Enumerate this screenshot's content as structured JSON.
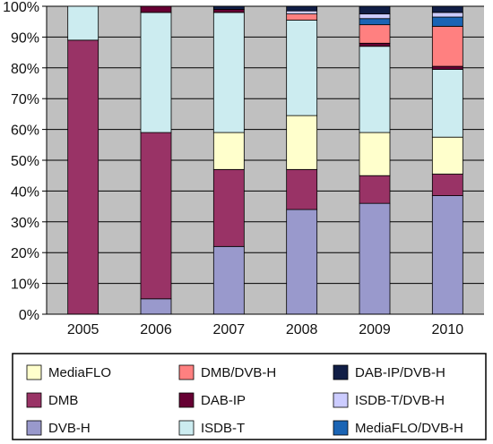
{
  "chart_data": {
    "type": "bar",
    "stacked": true,
    "categories": [
      "2005",
      "2006",
      "2007",
      "2008",
      "2009",
      "2010"
    ],
    "ylim": [
      0,
      100
    ],
    "yticks": [
      "0%",
      "10%",
      "20%",
      "30%",
      "40%",
      "50%",
      "60%",
      "70%",
      "80%",
      "90%",
      "100%"
    ],
    "grid": true,
    "legend_position": "bottom",
    "series": [
      {
        "name": "DVB-H",
        "color": "#9999cc",
        "values": [
          0,
          5,
          22,
          34,
          36,
          38.5
        ]
      },
      {
        "name": "DMB",
        "color": "#993366",
        "values": [
          89,
          54,
          25,
          13,
          9,
          7
        ]
      },
      {
        "name": "MediaFLO",
        "color": "#ffffcc",
        "values": [
          0,
          0,
          12,
          17.5,
          14,
          12
        ]
      },
      {
        "name": "ISDB-T",
        "color": "#ccecf0",
        "values": [
          11,
          39,
          39,
          31,
          28,
          22
        ]
      },
      {
        "name": "DAB-IP",
        "color": "#660033",
        "values": [
          0,
          2,
          1,
          0,
          1,
          1
        ]
      },
      {
        "name": "DMB/DVB-H",
        "color": "#ff8080",
        "values": [
          0,
          0,
          0,
          2,
          6,
          13
        ]
      },
      {
        "name": "MediaFLO/DVB-H",
        "color": "#1a64b4",
        "values": [
          0,
          0,
          0,
          0,
          2,
          3
        ]
      },
      {
        "name": "ISDB-T/DVB-H",
        "color": "#ccccff",
        "values": [
          0,
          0,
          0,
          1,
          1.5,
          1.5
        ]
      },
      {
        "name": "DAB-IP/DVB-H",
        "color": "#111e46",
        "values": [
          0,
          0,
          1,
          1.5,
          2.5,
          2
        ]
      }
    ],
    "legend_order": [
      "MediaFLO",
      "DMB/DVB-H",
      "DAB-IP/DVB-H",
      "DMB",
      "DAB-IP",
      "ISDB-T/DVB-H",
      "DVB-H",
      "ISDB-T",
      "MediaFLO/DVB-H"
    ]
  }
}
